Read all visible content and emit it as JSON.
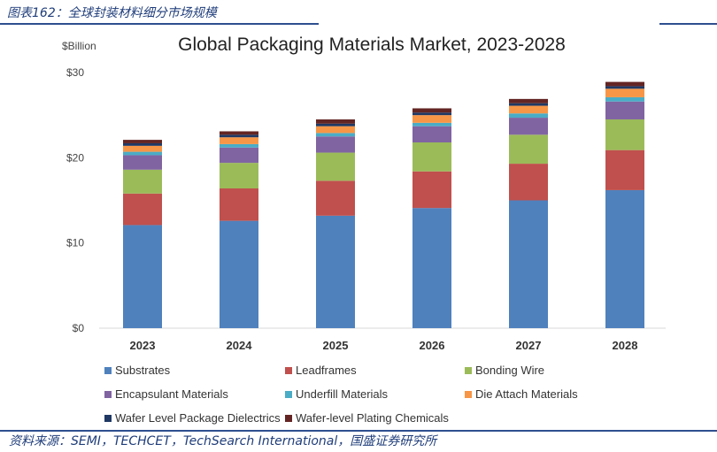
{
  "figure": {
    "label": "图表162：全球封装材料细分市场规模",
    "source": "资料来源：SEMI，TECHCET，TechSearch International，国盛证券研究所"
  },
  "chart_data": {
    "type": "bar",
    "stacked": true,
    "title": "Global Packaging Materials Market, 2023-2028",
    "unit_label": "$Billion",
    "categories": [
      "2023",
      "2024",
      "2025",
      "2026",
      "2027",
      "2028"
    ],
    "ylim": [
      0,
      30
    ],
    "yticks": [
      0,
      10,
      20,
      30
    ],
    "ytick_labels": [
      "$0",
      "$10",
      "$20",
      "$30"
    ],
    "series": [
      {
        "name": "Substrates",
        "color": "#4f81bd",
        "values": [
          12.1,
          12.6,
          13.2,
          14.1,
          15.0,
          16.2
        ]
      },
      {
        "name": "Leadframes",
        "color": "#c0504d",
        "values": [
          3.7,
          3.8,
          4.1,
          4.3,
          4.3,
          4.7
        ]
      },
      {
        "name": "Bonding Wire",
        "color": "#9bbb59",
        "values": [
          2.8,
          3.0,
          3.3,
          3.4,
          3.4,
          3.6
        ]
      },
      {
        "name": "Encapsulant Materials",
        "color": "#8064a2",
        "values": [
          1.7,
          1.8,
          1.9,
          1.9,
          2.0,
          2.1
        ]
      },
      {
        "name": "Underfill Materials",
        "color": "#4bacc6",
        "values": [
          0.4,
          0.4,
          0.4,
          0.4,
          0.5,
          0.5
        ]
      },
      {
        "name": "Die Attach Materials",
        "color": "#f79646",
        "values": [
          0.7,
          0.8,
          0.8,
          0.9,
          0.9,
          1.0
        ]
      },
      {
        "name": "Wafer Level Package Dielectrics",
        "color": "#1f3864",
        "values": [
          0.3,
          0.3,
          0.3,
          0.3,
          0.3,
          0.3
        ]
      },
      {
        "name": "Wafer-level Plating Chemicals",
        "color": "#632523",
        "values": [
          0.4,
          0.4,
          0.5,
          0.5,
          0.5,
          0.5
        ]
      }
    ],
    "grid": false,
    "legend": "bottom"
  }
}
